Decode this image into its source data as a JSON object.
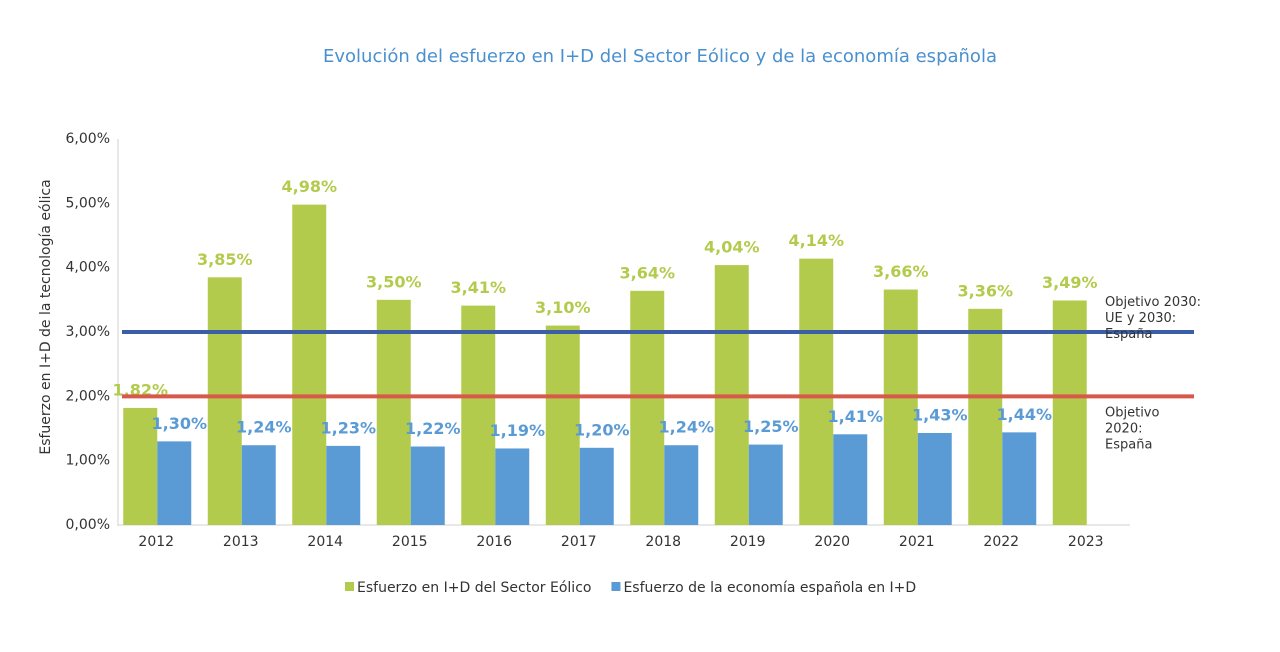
{
  "chart_data": {
    "type": "bar",
    "title": "Evolución del esfuerzo en I+D del Sector Eólico y de la economía española",
    "y_label": "Esfuerzo en I+D de la tecnología eólica",
    "categories": [
      "2012",
      "2013",
      "2014",
      "2015",
      "2016",
      "2017",
      "2018",
      "2019",
      "2020",
      "2021",
      "2022",
      "2023"
    ],
    "series": [
      {
        "name": "Esfuerzo en I+D del Sector Eólico",
        "color": "#b3cb4c",
        "values": [
          1.82,
          3.85,
          4.98,
          3.5,
          3.41,
          3.1,
          3.64,
          4.04,
          4.14,
          3.66,
          3.36,
          3.49
        ],
        "value_labels": [
          "1,82%",
          "3,85%",
          "4,98%",
          "3,50%",
          "3,41%",
          "3,10%",
          "3,64%",
          "4,04%",
          "4,14%",
          "3,66%",
          "3,36%",
          "3,49%"
        ]
      },
      {
        "name": "Esfuerzo de la economía española en I+D",
        "color": "#5b9bd5",
        "values": [
          1.3,
          1.24,
          1.23,
          1.22,
          1.19,
          1.2,
          1.24,
          1.25,
          1.41,
          1.43,
          1.44,
          null
        ],
        "value_labels": [
          "1,30%",
          "1,24%",
          "1,23%",
          "1,22%",
          "1,19%",
          "1,20%",
          "1,24%",
          "1,25%",
          "1,41%",
          "1,43%",
          "1,44%",
          null
        ]
      }
    ],
    "reference_lines": [
      {
        "value": 3,
        "color": "#3b5ea6",
        "label": [
          "Objetivo 2030:",
          "UE y 2030:",
          "España"
        ]
      },
      {
        "value": 2,
        "color": "#d8584a",
        "label": [
          "Objetivo",
          "2020:",
          "España"
        ]
      }
    ],
    "ylim": [
      0,
      6
    ],
    "yticks": [
      {
        "value": 0,
        "label": "0,00%"
      },
      {
        "value": 1,
        "label": "1,00%"
      },
      {
        "value": 2,
        "label": "2,00%"
      },
      {
        "value": 3,
        "label": "3,00%"
      },
      {
        "value": 4,
        "label": "4,00%"
      },
      {
        "value": 5,
        "label": "5,00%"
      },
      {
        "value": 6,
        "label": "6,00%"
      }
    ],
    "legend": "bottom"
  }
}
